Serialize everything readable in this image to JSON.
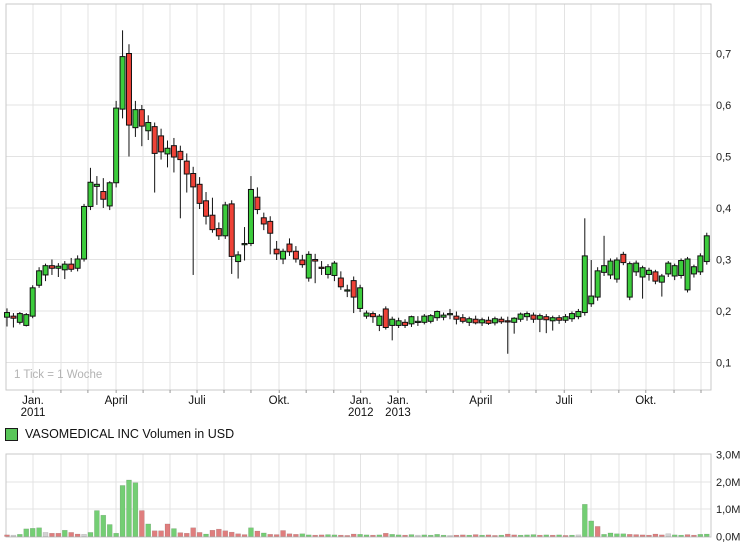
{
  "legend": {
    "label": "VASOMEDICAL INC Volumen in USD",
    "swatch_color": "#59c659"
  },
  "footnote": "1 Tick = 1 Woche",
  "colors": {
    "candle_up": "#3ccc3c",
    "candle_down": "#ee4237",
    "candle_border": "#111111",
    "vol_up": "#74ce74",
    "vol_down": "#df7e7e",
    "vol_neutral": "#d2d2d2",
    "grid": "#e3e3e3",
    "panel_border": "#c9c9c9",
    "tick_mark": "#999999"
  },
  "chart_data": [
    {
      "type": "candlestick",
      "title": "VASOMEDICAL INC weekly price in USD",
      "tick_interval": "1 Tick = 1 Woche",
      "ylim": [
        0.045,
        0.795
      ],
      "grid": true,
      "y_ticks": [
        {
          "label": "0,7",
          "value": 0.7
        },
        {
          "label": "0,6",
          "value": 0.6
        },
        {
          "label": "0,5",
          "value": 0.5
        },
        {
          "label": "0,4",
          "value": 0.4
        },
        {
          "label": "0,3",
          "value": 0.3
        },
        {
          "label": "0,2",
          "value": 0.2
        },
        {
          "label": "0,1",
          "value": 0.1
        }
      ],
      "x_labels": [
        {
          "i": 4.05,
          "line1": "Jan.",
          "line2": "2011"
        },
        {
          "i": 17.0,
          "line1": "April",
          "line2": ""
        },
        {
          "i": 29.6,
          "line1": "Juli",
          "line2": ""
        },
        {
          "i": 42.4,
          "line1": "Okt.",
          "line2": ""
        },
        {
          "i": 55.1,
          "line1": "Jan.",
          "line2": "2012"
        },
        {
          "i": 60.9,
          "line1": "Jan.",
          "line2": "2013"
        },
        {
          "i": 73.8,
          "line1": "April",
          "line2": ""
        },
        {
          "i": 86.8,
          "line1": "Juli",
          "line2": ""
        },
        {
          "i": 99.5,
          "line1": "Okt.",
          "line2": ""
        }
      ],
      "month_gridlines_i": [
        4.05,
        8.4,
        12.6,
        17.0,
        21.2,
        25.4,
        29.6,
        33.8,
        38.0,
        42.4,
        46.6,
        50.9,
        55.1,
        60.9,
        65.3,
        69.5,
        73.8,
        78.2,
        82.4,
        86.8,
        91.0,
        95.3,
        99.5,
        103.9,
        108.1
      ],
      "ohlc": [
        [
          0.188,
          0.205,
          0.17,
          0.197
        ],
        [
          0.19,
          0.196,
          0.168,
          0.186
        ],
        [
          0.178,
          0.198,
          0.174,
          0.195
        ],
        [
          0.172,
          0.196,
          0.17,
          0.193
        ],
        [
          0.19,
          0.25,
          0.186,
          0.245
        ],
        [
          0.25,
          0.285,
          0.245,
          0.278
        ],
        [
          0.27,
          0.292,
          0.258,
          0.288
        ],
        [
          0.288,
          0.3,
          0.27,
          0.283
        ],
        [
          0.283,
          0.293,
          0.266,
          0.287
        ],
        [
          0.28,
          0.297,
          0.262,
          0.291
        ],
        [
          0.291,
          0.303,
          0.276,
          0.281
        ],
        [
          0.283,
          0.308,
          0.277,
          0.301
        ],
        [
          0.301,
          0.408,
          0.296,
          0.403
        ],
        [
          0.403,
          0.478,
          0.396,
          0.45
        ],
        [
          0.442,
          0.462,
          0.406,
          0.446
        ],
        [
          0.432,
          0.458,
          0.4,
          0.417
        ],
        [
          0.404,
          0.452,
          0.396,
          0.449
        ],
        [
          0.449,
          0.608,
          0.44,
          0.594
        ],
        [
          0.592,
          0.745,
          0.574,
          0.694
        ],
        [
          0.7,
          0.718,
          0.5,
          0.561
        ],
        [
          0.556,
          0.608,
          0.538,
          0.591
        ],
        [
          0.591,
          0.6,
          0.52,
          0.559
        ],
        [
          0.55,
          0.58,
          0.532,
          0.566
        ],
        [
          0.558,
          0.566,
          0.43,
          0.506
        ],
        [
          0.54,
          0.554,
          0.494,
          0.509
        ],
        [
          0.505,
          0.531,
          0.479,
          0.516
        ],
        [
          0.521,
          0.536,
          0.469,
          0.499
        ],
        [
          0.51,
          0.521,
          0.38,
          0.494
        ],
        [
          0.491,
          0.506,
          0.43,
          0.466
        ],
        [
          0.467,
          0.48,
          0.27,
          0.441
        ],
        [
          0.446,
          0.46,
          0.398,
          0.409
        ],
        [
          0.414,
          0.431,
          0.368,
          0.384
        ],
        [
          0.386,
          0.42,
          0.352,
          0.358
        ],
        [
          0.36,
          0.372,
          0.338,
          0.346
        ],
        [
          0.346,
          0.412,
          0.34,
          0.406
        ],
        [
          0.408,
          0.415,
          0.272,
          0.306
        ],
        [
          0.296,
          0.316,
          0.263,
          0.309
        ],
        [
          0.33,
          0.363,
          0.298,
          0.331
        ],
        [
          0.331,
          0.462,
          0.326,
          0.436
        ],
        [
          0.421,
          0.44,
          0.388,
          0.397
        ],
        [
          0.381,
          0.391,
          0.357,
          0.369
        ],
        [
          0.374,
          0.384,
          0.31,
          0.351
        ],
        [
          0.32,
          0.336,
          0.299,
          0.311
        ],
        [
          0.301,
          0.321,
          0.291,
          0.316
        ],
        [
          0.33,
          0.341,
          0.307,
          0.315
        ],
        [
          0.316,
          0.326,
          0.294,
          0.301
        ],
        [
          0.299,
          0.309,
          0.284,
          0.29
        ],
        [
          0.264,
          0.316,
          0.257,
          0.31
        ],
        [
          0.3,
          0.311,
          0.254,
          0.297
        ],
        [
          0.285,
          0.297,
          0.27,
          0.284
        ],
        [
          0.271,
          0.291,
          0.263,
          0.286
        ],
        [
          0.269,
          0.297,
          0.258,
          0.293
        ],
        [
          0.264,
          0.277,
          0.241,
          0.247
        ],
        [
          0.24,
          0.251,
          0.227,
          0.241
        ],
        [
          0.259,
          0.267,
          0.196,
          0.227
        ],
        [
          0.205,
          0.251,
          0.198,
          0.245
        ],
        [
          0.19,
          0.201,
          0.185,
          0.196
        ],
        [
          0.195,
          0.199,
          0.177,
          0.189
        ],
        [
          0.172,
          0.194,
          0.161,
          0.19
        ],
        [
          0.204,
          0.209,
          0.164,
          0.168
        ],
        [
          0.172,
          0.189,
          0.143,
          0.184
        ],
        [
          0.172,
          0.187,
          0.167,
          0.181
        ],
        [
          0.178,
          0.184,
          0.167,
          0.172
        ],
        [
          0.175,
          0.191,
          0.169,
          0.189
        ],
        [
          0.18,
          0.19,
          0.171,
          0.18
        ],
        [
          0.178,
          0.194,
          0.174,
          0.19
        ],
        [
          0.18,
          0.194,
          0.176,
          0.191
        ],
        [
          0.187,
          0.201,
          0.181,
          0.199
        ],
        [
          0.188,
          0.197,
          0.182,
          0.192
        ],
        [
          0.194,
          0.204,
          0.184,
          0.195
        ],
        [
          0.19,
          0.199,
          0.174,
          0.184
        ],
        [
          0.187,
          0.194,
          0.176,
          0.18
        ],
        [
          0.178,
          0.189,
          0.171,
          0.185
        ],
        [
          0.184,
          0.191,
          0.174,
          0.177
        ],
        [
          0.177,
          0.187,
          0.171,
          0.183
        ],
        [
          0.182,
          0.189,
          0.173,
          0.176
        ],
        [
          0.177,
          0.189,
          0.172,
          0.185
        ],
        [
          0.184,
          0.189,
          0.175,
          0.179
        ],
        [
          0.181,
          0.189,
          0.117,
          0.179
        ],
        [
          0.178,
          0.188,
          0.156,
          0.186
        ],
        [
          0.184,
          0.197,
          0.179,
          0.194
        ],
        [
          0.189,
          0.199,
          0.181,
          0.195
        ],
        [
          0.192,
          0.197,
          0.177,
          0.184
        ],
        [
          0.184,
          0.195,
          0.159,
          0.191
        ],
        [
          0.189,
          0.194,
          0.157,
          0.183
        ],
        [
          0.181,
          0.191,
          0.162,
          0.187
        ],
        [
          0.187,
          0.192,
          0.175,
          0.182
        ],
        [
          0.182,
          0.194,
          0.177,
          0.189
        ],
        [
          0.185,
          0.199,
          0.179,
          0.195
        ],
        [
          0.189,
          0.204,
          0.184,
          0.199
        ],
        [
          0.197,
          0.38,
          0.191,
          0.307
        ],
        [
          0.214,
          0.299,
          0.208,
          0.229
        ],
        [
          0.227,
          0.285,
          0.22,
          0.278
        ],
        [
          0.275,
          0.346,
          0.268,
          0.288
        ],
        [
          0.27,
          0.302,
          0.262,
          0.297
        ],
        [
          0.262,
          0.304,
          0.255,
          0.299
        ],
        [
          0.31,
          0.315,
          0.289,
          0.294
        ],
        [
          0.227,
          0.296,
          0.221,
          0.292
        ],
        [
          0.276,
          0.298,
          0.268,
          0.293
        ],
        [
          0.266,
          0.288,
          0.224,
          0.284
        ],
        [
          0.271,
          0.284,
          0.259,
          0.279
        ],
        [
          0.276,
          0.28,
          0.252,
          0.258
        ],
        [
          0.256,
          0.272,
          0.228,
          0.268
        ],
        [
          0.272,
          0.297,
          0.266,
          0.293
        ],
        [
          0.268,
          0.292,
          0.26,
          0.288
        ],
        [
          0.269,
          0.302,
          0.263,
          0.298
        ],
        [
          0.241,
          0.305,
          0.236,
          0.301
        ],
        [
          0.272,
          0.29,
          0.265,
          0.286
        ],
        [
          0.276,
          0.312,
          0.27,
          0.307
        ],
        [
          0.296,
          0.352,
          0.29,
          0.346
        ]
      ]
    },
    {
      "type": "bar",
      "title": "VASOMEDICAL INC Volumen in USD",
      "ylim": [
        0,
        3.02
      ],
      "grid": true,
      "y_ticks": [
        {
          "label": "3,0M",
          "value": 3
        },
        {
          "label": "2,0M",
          "value": 2
        },
        {
          "label": "1,0M",
          "value": 1
        },
        {
          "label": "0,0M",
          "value": 0
        }
      ],
      "values": [
        [
          0.06,
          "r"
        ],
        [
          0.05,
          "y"
        ],
        [
          0.08,
          "g"
        ],
        [
          0.28,
          "g"
        ],
        [
          0.3,
          "g"
        ],
        [
          0.32,
          "g"
        ],
        [
          0.15,
          "y"
        ],
        [
          0.12,
          "r"
        ],
        [
          0.12,
          "r"
        ],
        [
          0.23,
          "g"
        ],
        [
          0.15,
          "r"
        ],
        [
          0.09,
          "r"
        ],
        [
          0.08,
          "y"
        ],
        [
          0.15,
          "g"
        ],
        [
          0.95,
          "g"
        ],
        [
          0.78,
          "g"
        ],
        [
          0.44,
          "g"
        ],
        [
          0.12,
          "g"
        ],
        [
          1.87,
          "g"
        ],
        [
          2.07,
          "g"
        ],
        [
          1.97,
          "g"
        ],
        [
          0.95,
          "r"
        ],
        [
          0.46,
          "g"
        ],
        [
          0.21,
          "r"
        ],
        [
          0.21,
          "r"
        ],
        [
          0.46,
          "r"
        ],
        [
          0.29,
          "g"
        ],
        [
          0.14,
          "r"
        ],
        [
          0.12,
          "r"
        ],
        [
          0.32,
          "r"
        ],
        [
          0.15,
          "r"
        ],
        [
          0.09,
          "g"
        ],
        [
          0.23,
          "r"
        ],
        [
          0.27,
          "r"
        ],
        [
          0.21,
          "r"
        ],
        [
          0.16,
          "r"
        ],
        [
          0.1,
          "r"
        ],
        [
          0.07,
          "r"
        ],
        [
          0.32,
          "g"
        ],
        [
          0.2,
          "r"
        ],
        [
          0.13,
          "g"
        ],
        [
          0.08,
          "r"
        ],
        [
          0.07,
          "r"
        ],
        [
          0.22,
          "r"
        ],
        [
          0.1,
          "r"
        ],
        [
          0.08,
          "r"
        ],
        [
          0.1,
          "g"
        ],
        [
          0.06,
          "g"
        ],
        [
          0.05,
          "r"
        ],
        [
          0.06,
          "r"
        ],
        [
          0.07,
          "g"
        ],
        [
          0.06,
          "g"
        ],
        [
          0.05,
          "r"
        ],
        [
          0.04,
          "r"
        ],
        [
          0.09,
          "r"
        ],
        [
          0.08,
          "g"
        ],
        [
          0.06,
          "g"
        ],
        [
          0.05,
          "r"
        ],
        [
          0.06,
          "g"
        ],
        [
          0.12,
          "r"
        ],
        [
          0.08,
          "g"
        ],
        [
          0.06,
          "g"
        ],
        [
          0.05,
          "r"
        ],
        [
          0.07,
          "g"
        ],
        [
          0.05,
          "y"
        ],
        [
          0.06,
          "g"
        ],
        [
          0.05,
          "g"
        ],
        [
          0.08,
          "g"
        ],
        [
          0.05,
          "g"
        ],
        [
          0.04,
          "y"
        ],
        [
          0.05,
          "r"
        ],
        [
          0.06,
          "r"
        ],
        [
          0.05,
          "g"
        ],
        [
          0.07,
          "r"
        ],
        [
          0.05,
          "g"
        ],
        [
          0.06,
          "r"
        ],
        [
          0.04,
          "r"
        ],
        [
          0.05,
          "g"
        ],
        [
          0.09,
          "r"
        ],
        [
          0.06,
          "r"
        ],
        [
          0.05,
          "g"
        ],
        [
          0.06,
          "g"
        ],
        [
          0.07,
          "g"
        ],
        [
          0.05,
          "r"
        ],
        [
          0.06,
          "g"
        ],
        [
          0.05,
          "r"
        ],
        [
          0.06,
          "g"
        ],
        [
          0.04,
          "r"
        ],
        [
          0.05,
          "g"
        ],
        [
          0.06,
          "y"
        ],
        [
          1.18,
          "g"
        ],
        [
          0.57,
          "g"
        ],
        [
          0.37,
          "r"
        ],
        [
          0.08,
          "g"
        ],
        [
          0.13,
          "g"
        ],
        [
          0.1,
          "g"
        ],
        [
          0.1,
          "g"
        ],
        [
          0.08,
          "r"
        ],
        [
          0.07,
          "r"
        ],
        [
          0.06,
          "r"
        ],
        [
          0.05,
          "r"
        ],
        [
          0.09,
          "r"
        ],
        [
          0.06,
          "r"
        ],
        [
          0.1,
          "y"
        ],
        [
          0.06,
          "g"
        ],
        [
          0.05,
          "g"
        ],
        [
          0.07,
          "r"
        ],
        [
          0.05,
          "r"
        ],
        [
          0.08,
          "g"
        ],
        [
          0.09,
          "g"
        ]
      ]
    }
  ]
}
